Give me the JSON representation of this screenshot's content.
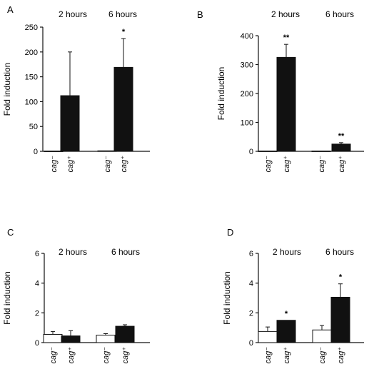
{
  "chart_data": [
    {
      "panel": "A",
      "type": "bar",
      "ylabel": "Fold induction",
      "ylim": [
        0,
        250
      ],
      "yticks": [
        "0",
        "50",
        "100",
        "150",
        "200",
        "250"
      ],
      "groups": [
        "2 hours",
        "6 hours"
      ],
      "categories": [
        "cag⁻",
        "cag⁺",
        "cag⁻",
        "cag⁺"
      ],
      "values": [
        0.5,
        112,
        1,
        169
      ],
      "errors": [
        0,
        88,
        0,
        58
      ],
      "fills": [
        "#ffffff",
        "#111111",
        "#ffffff",
        "#111111"
      ],
      "annotations": [
        "",
        "",
        "",
        "*"
      ]
    },
    {
      "panel": "B",
      "type": "bar",
      "ylabel": "Fold induction",
      "ylim": [
        0,
        400
      ],
      "yticks": [
        "0",
        "100",
        "200",
        "300",
        "400"
      ],
      "groups": [
        "2 hours",
        "6 hours"
      ],
      "categories": [
        "cag⁻",
        "cag⁺",
        "cag⁻",
        "cag⁺"
      ],
      "values": [
        1,
        325,
        1,
        25
      ],
      "errors": [
        0,
        45,
        0,
        5
      ],
      "fills": [
        "#ffffff",
        "#111111",
        "#ffffff",
        "#111111"
      ],
      "annotations": [
        "",
        "**",
        "",
        "**"
      ]
    },
    {
      "panel": "C",
      "type": "bar",
      "ylabel": "Fold induction",
      "ylim": [
        0,
        6
      ],
      "yticks": [
        "0",
        "2",
        "4",
        "6"
      ],
      "groups": [
        "2 hours",
        "6 hours"
      ],
      "categories": [
        "cag⁻",
        "cag⁺",
        "cag⁻",
        "cag⁺"
      ],
      "values": [
        0.55,
        0.45,
        0.5,
        1.1
      ],
      "errors": [
        0.2,
        0.35,
        0.1,
        0.1
      ],
      "fills": [
        "#ffffff",
        "#111111",
        "#ffffff",
        "#111111"
      ],
      "annotations": [
        "",
        "",
        "",
        ""
      ]
    },
    {
      "panel": "D",
      "type": "bar",
      "ylabel": "Fold induction",
      "ylim": [
        0,
        6
      ],
      "yticks": [
        "0",
        "2",
        "4",
        "6"
      ],
      "groups": [
        "2 hours",
        "6 hours"
      ],
      "categories": [
        "cag⁻",
        "cag⁺",
        "cag⁻",
        "cag⁺"
      ],
      "values": [
        0.75,
        1.5,
        0.85,
        3.05
      ],
      "errors": [
        0.3,
        0,
        0.3,
        0.9
      ],
      "fills": [
        "#ffffff",
        "#111111",
        "#ffffff",
        "#111111"
      ],
      "annotations": [
        "",
        "*",
        "",
        "*"
      ]
    }
  ]
}
